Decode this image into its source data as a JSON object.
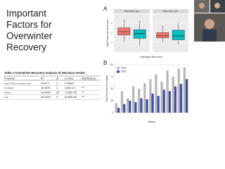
{
  "slide": {
    "title_lines": [
      "Important",
      "Factors for",
      "Overwinter",
      "Recovery"
    ]
  },
  "table": {
    "caption": "Table 2 Overwinter Recovery Analysis of Deviance results",
    "header": [
      "Predictor",
      "R²",
      "df",
      "p-value",
      "Significance"
    ],
    "rows": [
      [
        "log(CFU/g) in previous year",
        "6.4374",
        "1",
        "0.03567",
        "*"
      ],
      [
        "FD Strain",
        "40.6537",
        "1",
        "4.65e-12",
        "***"
      ],
      [
        "Variety",
        "43.9989",
        "25",
        "1.328e-05",
        "***"
      ],
      [
        "Year",
        "29.4254",
        "3",
        "8.496e-08",
        "***"
      ]
    ]
  },
  "panel_a": {
    "type": "box",
    "label": "A",
    "y_label": "log(CFU/g) in previous year",
    "x_label": "Pathogen Recovery",
    "facets": [
      "Recovery_yr1",
      "Recovery_yr2"
    ],
    "ylim": [
      0,
      8
    ],
    "yticks": [
      2,
      4,
      6
    ],
    "boxes": [
      {
        "facet": 0,
        "color": "#f8766d",
        "min": 2.2,
        "q1": 3.6,
        "median": 4.3,
        "q3": 5.1,
        "max": 6.9
      },
      {
        "facet": 0,
        "color": "#00bfc4",
        "min": 1.4,
        "q1": 2.9,
        "median": 3.9,
        "q3": 4.7,
        "max": 6.6
      },
      {
        "facet": 1,
        "color": "#f8766d",
        "min": 2.0,
        "q1": 3.0,
        "median": 3.5,
        "q3": 4.1,
        "max": 5.6
      },
      {
        "facet": 1,
        "color": "#00bfc4",
        "min": 1.6,
        "q1": 2.6,
        "median": 3.4,
        "q3": 4.6,
        "max": 6.2
      }
    ]
  },
  "panel_b": {
    "type": "bar",
    "label": "B",
    "y_label": "Total Recovery Percentage",
    "x_label": "Variety",
    "ylim": [
      0,
      100
    ],
    "yticks": [
      0,
      25,
      50,
      75,
      100
    ],
    "legend": "top-left",
    "categories": [
      null,
      null,
      null,
      null,
      null,
      null,
      null,
      null,
      null,
      null,
      null,
      null,
      null
    ],
    "series": [
      {
        "name": "2019",
        "color": "#b8b8b8",
        "values": [
          20,
          45,
          30,
          55,
          50,
          62,
          70,
          80,
          65,
          88,
          75,
          92,
          95
        ]
      },
      {
        "name": "2020",
        "color": "#3f51a3",
        "values": [
          10,
          18,
          25,
          22,
          30,
          28,
          40,
          35,
          48,
          45,
          55,
          60,
          70
        ]
      }
    ]
  }
}
